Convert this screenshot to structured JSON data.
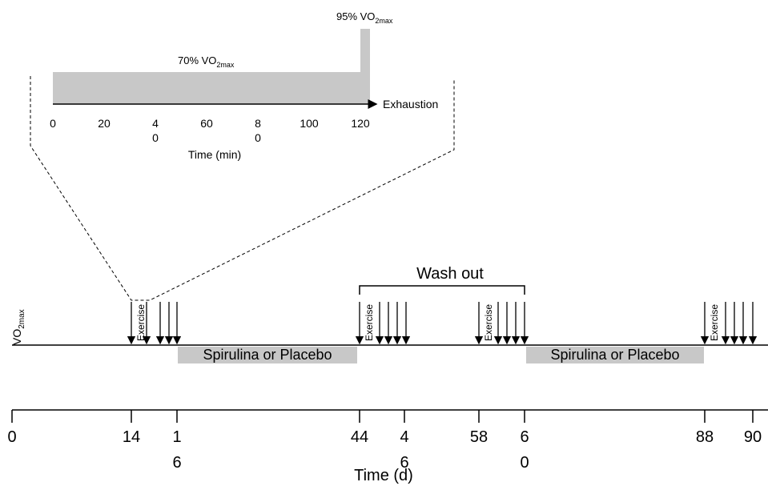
{
  "inset": {
    "peak_label": {
      "text": "95% VO",
      "sub": "2max"
    },
    "base_label": {
      "text": "70% VO",
      "sub": "2max"
    },
    "end_label": "Exhaustion",
    "ticks": [
      "0",
      "20",
      "40",
      "60",
      "80",
      "100",
      "120"
    ],
    "axis_title": "Time (min)"
  },
  "timeline": {
    "y_label": {
      "text": "VO",
      "sub": "2max"
    },
    "exercise_labels": [
      "Exercise",
      "Exercise",
      "Exercise",
      "Exercise"
    ],
    "washout": "Wash out",
    "treatments": [
      "Spirulina or Placebo",
      "Spirulina or Placebo"
    ],
    "ticks": [
      "0",
      "14",
      "16",
      "44",
      "46",
      "58",
      "60",
      "88",
      "90"
    ],
    "axis_title": "Time (d)"
  }
}
